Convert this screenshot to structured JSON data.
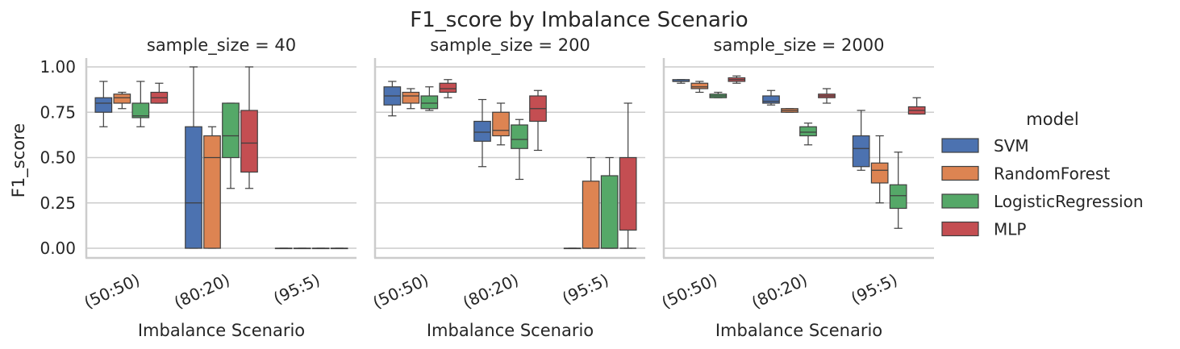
{
  "chart_data": {
    "type": "box",
    "title": "F1_score by Imbalance Scenario",
    "ylabel": "F1_score",
    "xlabel": "Imbalance Scenario",
    "ylim": [
      -0.05,
      1.05
    ],
    "yticks": [
      "0.00",
      "0.25",
      "0.50",
      "0.75",
      "1.00"
    ],
    "ytick_values": [
      0,
      0.25,
      0.5,
      0.75,
      1.0
    ],
    "categories": [
      "(50:50)",
      "(80:20)",
      "(95:5)"
    ],
    "legend": {
      "title": "model",
      "placement": "right",
      "entries": [
        {
          "name": "SVM",
          "color": "#4c72b0"
        },
        {
          "name": "RandomForest",
          "color": "#dd8452"
        },
        {
          "name": "LogisticRegression",
          "color": "#55a868"
        },
        {
          "name": "MLP",
          "color": "#c44e52"
        }
      ]
    },
    "panels": [
      {
        "title": "sample_size = 40",
        "boxes": [
          [
            [
              0.67,
              0.75,
              0.8,
              0.83,
              0.92
            ],
            [
              0.77,
              0.8,
              0.83,
              0.85,
              0.86
            ],
            [
              0.67,
              0.72,
              0.73,
              0.8,
              0.92
            ],
            [
              0.8,
              0.8,
              0.83,
              0.86,
              0.91
            ]
          ],
          [
            [
              0.0,
              0.0,
              0.25,
              0.67,
              1.0
            ],
            [
              0.0,
              0.0,
              0.5,
              0.62,
              0.67
            ],
            [
              0.33,
              0.5,
              0.62,
              0.8,
              0.8
            ],
            [
              0.33,
              0.42,
              0.58,
              0.76,
              1.0
            ]
          ],
          [
            [
              0.0,
              0.0,
              0.0,
              0.0,
              0.0
            ],
            [
              0.0,
              0.0,
              0.0,
              0.0,
              0.0
            ],
            [
              0.0,
              0.0,
              0.0,
              0.0,
              0.0
            ],
            [
              0.0,
              0.0,
              0.0,
              0.0,
              0.0
            ]
          ]
        ]
      },
      {
        "title": "sample_size = 200",
        "boxes": [
          [
            [
              0.73,
              0.79,
              0.84,
              0.89,
              0.92
            ],
            [
              0.77,
              0.8,
              0.84,
              0.86,
              0.88
            ],
            [
              0.76,
              0.77,
              0.8,
              0.84,
              0.89
            ],
            [
              0.83,
              0.86,
              0.88,
              0.91,
              0.93
            ]
          ],
          [
            [
              0.45,
              0.59,
              0.64,
              0.7,
              0.82
            ],
            [
              0.57,
              0.62,
              0.65,
              0.75,
              0.8
            ],
            [
              0.38,
              0.55,
              0.6,
              0.68,
              0.71
            ],
            [
              0.54,
              0.7,
              0.77,
              0.84,
              0.87
            ]
          ],
          [
            [
              0.0,
              0.0,
              0.0,
              0.0,
              0.0
            ],
            [
              0.0,
              0.0,
              0.0,
              0.37,
              0.5
            ],
            [
              0.0,
              0.0,
              0.0,
              0.4,
              0.5
            ],
            [
              0.0,
              0.1,
              0.0,
              0.5,
              0.8
            ]
          ]
        ]
      },
      {
        "title": "sample_size = 2000",
        "boxes": [
          [
            [
              0.91,
              0.92,
              0.92,
              0.93,
              0.93
            ],
            [
              0.86,
              0.88,
              0.89,
              0.91,
              0.92
            ],
            [
              0.83,
              0.83,
              0.84,
              0.85,
              0.86
            ],
            [
              0.91,
              0.92,
              0.93,
              0.94,
              0.95
            ]
          ],
          [
            [
              0.79,
              0.8,
              0.81,
              0.84,
              0.87
            ],
            [
              0.75,
              0.75,
              0.76,
              0.77,
              0.77
            ],
            [
              0.57,
              0.62,
              0.64,
              0.67,
              0.69
            ],
            [
              0.8,
              0.83,
              0.84,
              0.85,
              0.88
            ]
          ],
          [
            [
              0.43,
              0.45,
              0.55,
              0.62,
              0.76
            ],
            [
              0.25,
              0.36,
              0.43,
              0.47,
              0.62
            ],
            [
              0.11,
              0.22,
              0.29,
              0.35,
              0.53
            ],
            [
              0.74,
              0.74,
              0.76,
              0.78,
              0.83
            ]
          ]
        ]
      }
    ]
  }
}
